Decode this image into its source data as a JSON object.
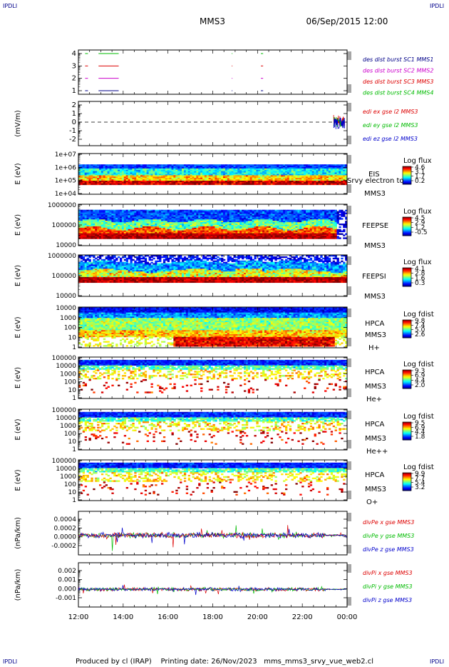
{
  "header": {
    "corner_label": "IPDLI",
    "spacecraft": "MMS3",
    "date": "06/Sep/2015 12:00"
  },
  "footer": {
    "text": "Produced by cl (IRAP)    Printing date: 26/Nov/2023   mms_mms3_srvy_vue_web2.cl"
  },
  "time_axis": {
    "ticks": [
      "12:00",
      "14:00",
      "16:00",
      "18:00",
      "20:00",
      "22:00",
      "00:00"
    ]
  },
  "colors": {
    "mms1": "#000088",
    "mms2": "#cc00cc",
    "mms3": "#dd0000",
    "mms4": "#00bb00",
    "x": "#dd0000",
    "y": "#00bb00",
    "z": "#0000cc"
  },
  "chart_data": [
    {
      "type": "line",
      "panel": "burst",
      "yticks": [
        "1",
        "2",
        "3",
        "4"
      ],
      "ylim": [
        0.5,
        4.5
      ],
      "series": [
        {
          "name": "des dist burst SC1 MMS1",
          "level": 1,
          "segments": [
            [
              12.3,
              12.5
            ],
            [
              12.9,
              13.8
            ]
          ]
        },
        {
          "name": "des dist burst SC2 MMS2",
          "level": 2,
          "segments": [
            [
              12.3,
              12.5
            ],
            [
              12.9,
              13.8
            ]
          ]
        },
        {
          "name": "des dist burst SC3 MMS3",
          "level": 3,
          "segments": [
            [
              12.3,
              12.5
            ],
            [
              12.9,
              13.8
            ]
          ]
        },
        {
          "name": "des dist burst SC4 MMS4",
          "level": 4,
          "segments": [
            [
              12.3,
              12.5
            ],
            [
              12.9,
              13.8
            ]
          ]
        }
      ]
    },
    {
      "type": "line",
      "panel": "edi_e",
      "ylabel": "(mV/m)",
      "yticks": [
        "-2",
        "-1",
        "0",
        "1",
        "2"
      ],
      "ylim": [
        -2.5,
        2.5
      ],
      "series": [
        {
          "name": "edi ex gse l2 MMS3"
        },
        {
          "name": "edi ey gse l2 MMS3"
        },
        {
          "name": "edi ez gse l2 MMS3"
        }
      ]
    },
    {
      "type": "heatmap",
      "panel": "eis",
      "ylabel": "E (eV)",
      "yticks": [
        "1e+04",
        "1e+05",
        "1e+06",
        "1e+07"
      ],
      "labels": [
        "EIS",
        "Srvy electron to",
        "MMS3"
      ],
      "colorbar": {
        "title": "Log flux",
        "ticks": [
          "4.6",
          "3.1",
          "1.7",
          "0.2"
        ]
      }
    },
    {
      "type": "heatmap",
      "panel": "feeps_e",
      "ylabel": "E (eV)",
      "yticks": [
        "10000",
        "100000",
        "1000000"
      ],
      "labels": [
        "FEEPSE",
        "MMS3"
      ],
      "colorbar": {
        "title": "Log flux",
        "ticks": [
          "4.5",
          "2.9",
          "1.2",
          "-0.5"
        ]
      }
    },
    {
      "type": "heatmap",
      "panel": "feeps_i",
      "ylabel": "E (eV)",
      "yticks": [
        "10000",
        "100000",
        "1000000"
      ],
      "labels": [
        "FEEPSI",
        "MMS3"
      ],
      "colorbar": {
        "title": "Log flux",
        "ticks": [
          "4.1",
          "2.8",
          "1.6",
          "0.3"
        ]
      }
    },
    {
      "type": "heatmap",
      "panel": "hpca_h",
      "ylabel": "E (eV)",
      "yticks": [
        "1",
        "10",
        "100",
        "1000",
        "10000"
      ],
      "labels": [
        "HPCA",
        "MMS3",
        "H+"
      ],
      "colorbar": {
        "title": "Log fdist",
        "ticks": [
          "9.8",
          "7.4",
          "5.0",
          "2.6"
        ]
      }
    },
    {
      "type": "heatmap",
      "panel": "hpca_he",
      "ylabel": "E (eV)",
      "yticks": [
        "1",
        "10",
        "100",
        "1000",
        "10000",
        "100000"
      ],
      "labels": [
        "HPCA",
        "MMS3",
        "He+"
      ],
      "colorbar": {
        "title": "Log fdist",
        "ticks": [
          "9.3",
          "6.9",
          "4.4",
          "2.0"
        ]
      }
    },
    {
      "type": "heatmap",
      "panel": "hpca_hepp",
      "ylabel": "E (eV)",
      "yticks": [
        "1",
        "10",
        "100",
        "1000",
        "10000",
        "100000"
      ],
      "labels": [
        "HPCA",
        "MMS3",
        "He++"
      ],
      "colorbar": {
        "title": "Log fdist",
        "ticks": [
          "9.5",
          "6.9",
          "4.4",
          "1.8"
        ]
      }
    },
    {
      "type": "heatmap",
      "panel": "hpca_o",
      "ylabel": "E (eV)",
      "yticks": [
        "1",
        "10",
        "100",
        "1000",
        "10000",
        "100000"
      ],
      "labels": [
        "HPCA",
        "MMS3",
        "O+"
      ],
      "colorbar": {
        "title": "Log fdist",
        "ticks": [
          "9.9",
          "7.7",
          "5.4",
          "3.2"
        ]
      }
    },
    {
      "type": "line",
      "panel": "divpe",
      "ylabel": "(nPa/km)",
      "yticks": [
        "-0.0002",
        "0.0000",
        "0.0002",
        "0.0004"
      ],
      "ylim": [
        -0.0003,
        0.0005
      ],
      "series": [
        {
          "name": "divPe x gse MMS3"
        },
        {
          "name": "divPe y gse MMS3"
        },
        {
          "name": "divPe z gse MMS3"
        }
      ]
    },
    {
      "type": "line",
      "panel": "divpi",
      "ylabel": "(nPa/km)",
      "yticks": [
        "-0.001",
        "0.000",
        "0.001",
        "0.002"
      ],
      "ylim": [
        -0.0015,
        0.0025
      ],
      "series": [
        {
          "name": "divPi x gse MMS3"
        },
        {
          "name": "divPi y gse MMS3"
        },
        {
          "name": "divPi z gse MMS3"
        }
      ]
    }
  ]
}
